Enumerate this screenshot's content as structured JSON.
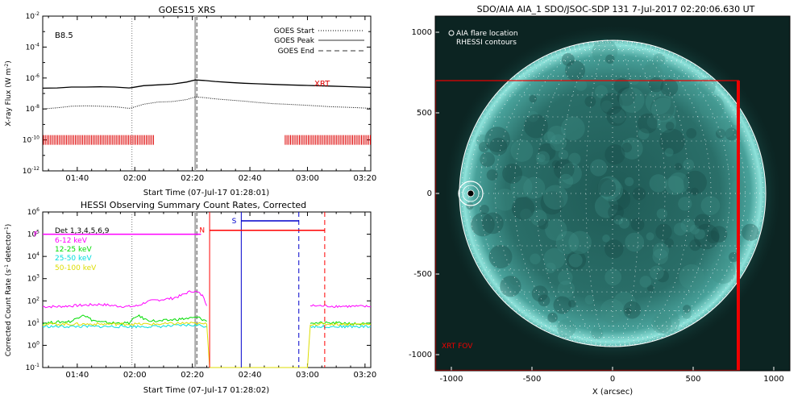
{
  "chart_data": [
    {
      "type": "line",
      "title": "GOES15 XRS",
      "xlabel": "Start Time (07-Jul-17 01:28:01)",
      "ylabel_parts": [
        "X-ray Flux (W m",
        "-2",
        ")"
      ],
      "x_ticks": [
        "01:40",
        "02:00",
        "02:20",
        "02:40",
        "03:00",
        "03:20"
      ],
      "x_tick_minutes": [
        12,
        32,
        52,
        72,
        92,
        112
      ],
      "xlim_minutes": [
        0,
        114
      ],
      "y_scale": "log",
      "ylim": [
        1e-12,
        0.01
      ],
      "y_ticks": [
        {
          "base": "10",
          "exp": "-12"
        },
        {
          "base": "10",
          "exp": "-10"
        },
        {
          "base": "10",
          "exp": "-8"
        },
        {
          "base": "10",
          "exp": "-6"
        },
        {
          "base": "10",
          "exp": "-4"
        },
        {
          "base": "10",
          "exp": "-2"
        }
      ],
      "y_tick_exps": [
        -12,
        -10,
        -8,
        -6,
        -4,
        -2
      ],
      "class_label": "B8.5",
      "legend": [
        {
          "label": "GOES Start",
          "style": "dotted"
        },
        {
          "label": "GOES Peak",
          "style": "solid"
        },
        {
          "label": "GOES End",
          "style": "dashed"
        }
      ],
      "goes_start_minute": 31,
      "goes_peak_minute": 53,
      "goes_end_minute": 53.6,
      "xrt_label": "XRT",
      "xrt_color": "#dd0000",
      "xrt_intervals": [
        [
          0,
          39
        ],
        [
          84,
          114
        ]
      ],
      "series": [
        {
          "style": "solid",
          "x": [
            0,
            5,
            10,
            15,
            20,
            25,
            30,
            31,
            35,
            40,
            45,
            50,
            53,
            56,
            60,
            65,
            70,
            75,
            80,
            85,
            90,
            95,
            100,
            105,
            110,
            114
          ],
          "y": [
            2.2e-07,
            2.3e-07,
            2.6e-07,
            2.6e-07,
            2.7e-07,
            2.6e-07,
            2.3e-07,
            2.4e-07,
            3.2e-07,
            3.6e-07,
            4e-07,
            5.5e-07,
            7.5e-07,
            7e-07,
            6e-07,
            5.2e-07,
            4.6e-07,
            4.2e-07,
            3.9e-07,
            3.6e-07,
            3.4e-07,
            3.2e-07,
            3e-07,
            2.8e-07,
            2.6e-07,
            2.5e-07
          ]
        },
        {
          "style": "dotted",
          "x": [
            0,
            5,
            10,
            15,
            20,
            25,
            30,
            31,
            35,
            40,
            45,
            50,
            53,
            56,
            60,
            65,
            70,
            75,
            80,
            85,
            90,
            95,
            100,
            105,
            110,
            114
          ],
          "y": [
            1e-08,
            1.2e-08,
            1.5e-08,
            1.6e-08,
            1.5e-08,
            1.4e-08,
            1.1e-08,
            1.2e-08,
            2e-08,
            2.8e-08,
            3e-08,
            4e-08,
            6e-08,
            5.5e-08,
            4.5e-08,
            3.8e-08,
            3.2e-08,
            2.6e-08,
            2.2e-08,
            2e-08,
            1.8e-08,
            1.6e-08,
            1.4e-08,
            1.3e-08,
            1.2e-08,
            1.1e-08
          ]
        }
      ]
    },
    {
      "type": "line",
      "title": "HESSI Observing Summary Count Rates, Corrected",
      "xlabel": "Start Time (07-Jul-17 01:28:02)",
      "ylabel_parts": [
        "Corrected Count Rate (s",
        "-1",
        " detector",
        "-1",
        ")"
      ],
      "x_ticks": [
        "01:40",
        "02:00",
        "02:20",
        "02:40",
        "03:00",
        "03:20"
      ],
      "x_tick_minutes": [
        12,
        32,
        52,
        72,
        92,
        112
      ],
      "xlim_minutes": [
        0,
        114
      ],
      "y_scale": "log",
      "ylim": [
        0.1,
        1000000.0
      ],
      "y_ticks": [
        {
          "base": "10",
          "exp": "-1"
        },
        {
          "base": "10",
          "exp": "0"
        },
        {
          "base": "10",
          "exp": "1"
        },
        {
          "base": "10",
          "exp": "2"
        },
        {
          "base": "10",
          "exp": "3"
        },
        {
          "base": "10",
          "exp": "4"
        },
        {
          "base": "10",
          "exp": "5"
        },
        {
          "base": "10",
          "exp": "6"
        }
      ],
      "y_tick_exps": [
        -1,
        0,
        1,
        2,
        3,
        4,
        5,
        6
      ],
      "legend": [
        {
          "label": "Det 1,3,4,5,6,9",
          "color": "#000000"
        },
        {
          "label": "6-12 keV",
          "color": "#ff00ff"
        },
        {
          "label": "12-25 keV",
          "color": "#00dd00"
        },
        {
          "label": "25-50 keV",
          "color": "#00dddd"
        },
        {
          "label": "50-100 keV",
          "color": "#dddd00"
        }
      ],
      "goes_start_minute": 31,
      "goes_peak_minute": 53,
      "goes_end_minute": 53.6,
      "flag_bars": [
        {
          "letter": "F",
          "color": "#ff00ff",
          "x_start": 0,
          "x_end": 55,
          "y": 100000.0
        },
        {
          "letter": "N",
          "color": "#ff0000",
          "x_start": 58,
          "x_end": 98,
          "y": 150000.0
        },
        {
          "letter": "S",
          "color": "#0000cc",
          "x_start": 69,
          "x_end": 89,
          "y": 400000.0
        }
      ],
      "event_lines": [
        {
          "x": 58,
          "color": "#ff0000",
          "style": "solid"
        },
        {
          "x": 69,
          "color": "#0000cc",
          "style": "solid"
        },
        {
          "x": 89,
          "color": "#0000cc",
          "style": "dashed"
        },
        {
          "x": 98,
          "color": "#ff0000",
          "style": "dashed"
        }
      ],
      "series": [
        {
          "name": "6-12 keV",
          "color": "#ff00ff",
          "segments": [
            {
              "x": [
                0,
                5,
                10,
                15,
                20,
                25,
                30,
                33,
                36,
                40,
                45,
                48,
                50,
                52,
                54,
                56,
                57
              ],
              "y": [
                55,
                55,
                60,
                65,
                70,
                60,
                55,
                60,
                90,
                110,
                130,
                170,
                230,
                280,
                240,
                150,
                60
              ]
            },
            {
              "x": [
                93,
                95,
                100,
                105,
                110,
                114
              ],
              "y": [
                60,
                60,
                58,
                57,
                56,
                55
              ]
            }
          ]
        },
        {
          "name": "12-25 keV",
          "color": "#00dd00",
          "segments": [
            {
              "x": [
                0,
                5,
                10,
                14,
                17,
                20,
                25,
                30,
                33,
                36,
                40,
                45,
                50,
                54,
                57
              ],
              "y": [
                10,
                11,
                12,
                25,
                14,
                11,
                10,
                10,
                22,
                14,
                12,
                14,
                16,
                18,
                12
              ]
            },
            {
              "x": [
                93,
                95,
                100,
                105,
                110,
                114
              ],
              "y": [
                11,
                10,
                10,
                10,
                9,
                9
              ]
            }
          ]
        },
        {
          "name": "25-50 keV",
          "color": "#00dddd",
          "segments": [
            {
              "x": [
                0,
                10,
                20,
                30,
                40,
                50,
                54,
                57
              ],
              "y": [
                7,
                7,
                7,
                7,
                7,
                8,
                8,
                7
              ]
            },
            {
              "x": [
                93,
                100,
                114
              ],
              "y": [
                7,
                7,
                7
              ]
            }
          ]
        },
        {
          "name": "50-100 keV",
          "color": "#dddd00",
          "segments": [
            {
              "x": [
                0,
                10,
                20,
                30,
                40,
                50,
                57,
                58,
                59,
                92,
                93,
                100,
                114
              ],
              "y": [
                9,
                9,
                9,
                9,
                9,
                10,
                9,
                0.1,
                0.1,
                0.1,
                9,
                9,
                9
              ]
            }
          ]
        }
      ]
    },
    {
      "type": "image",
      "title": "SDO/AIA AIA_1 SDO/JSOC-SDP 131  7-Jul-2017 02:20:06.630 UT",
      "xlabel": "X (arcsec)",
      "ylabel": "",
      "xlim": [
        -1100,
        1100
      ],
      "ylim": [
        -1100,
        1100
      ],
      "x_ticks": [
        -1000,
        -500,
        0,
        500,
        1000
      ],
      "y_ticks": [
        -1000,
        -500,
        0,
        500,
        1000
      ],
      "solar_radius_arcsec": 950,
      "grid_spacing_deg": 10,
      "legend": [
        {
          "label": "AIA flare location",
          "marker": "circle"
        },
        {
          "label": "RHESSI contours"
        }
      ],
      "flare_location": [
        -880,
        0
      ],
      "xrt_fov": {
        "label": "XRT FOV",
        "x": [
          -1100,
          780
        ],
        "y": [
          -1100,
          700
        ],
        "color": "#ee0000"
      }
    }
  ]
}
